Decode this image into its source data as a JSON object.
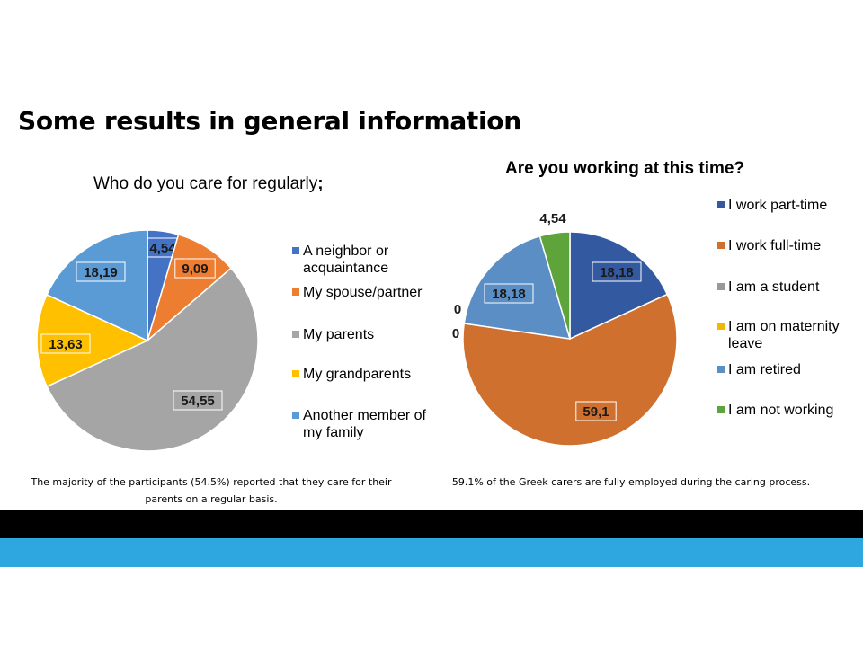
{
  "slide": {
    "title": "Some results in general information",
    "caption_left": "The majority of the participants (54.5%) reported that they care for their parents on a regular basis.",
    "caption_right": "59.1% of the Greek carers are fully employed during the caring process."
  },
  "chart_data": [
    {
      "type": "pie",
      "title_text": "Who do you care for regularly",
      "title_punct": ";",
      "legend_position": "right",
      "slices": [
        {
          "label": "A neighbor or acquaintance",
          "value": 4.54,
          "value_label": "4,54",
          "color": "#4472c4"
        },
        {
          "label": "My spouse/partner",
          "value": 9.09,
          "value_label": "9,09",
          "color": "#ed7d31"
        },
        {
          "label": "My parents",
          "value": 54.55,
          "value_label": "54,55",
          "color": "#a5a5a5"
        },
        {
          "label": "My grandparents",
          "value": 13.63,
          "value_label": "13,63",
          "color": "#ffc000"
        },
        {
          "label": "Another member of my family",
          "value": 18.19,
          "value_label": "18,19",
          "color": "#5b9bd5"
        }
      ]
    },
    {
      "type": "pie",
      "title": "Are you working at this time?",
      "legend_position": "right",
      "slices": [
        {
          "label": "I work part-time",
          "value": 18.18,
          "value_label": "18,18",
          "color": "#335aa0"
        },
        {
          "label": "I work full-time",
          "value": 59.1,
          "value_label": "59,1",
          "color": "#d0702e"
        },
        {
          "label": "I am a student",
          "value": 0,
          "value_label": "0",
          "color": "#999999"
        },
        {
          "label": "I am on maternity leave",
          "value": 0,
          "value_label": "0",
          "color": "#f2b800"
        },
        {
          "label": "I am retired",
          "value": 18.18,
          "value_label": "18,18",
          "color": "#5a8ec4"
        },
        {
          "label": "I am not working",
          "value": 4.54,
          "value_label": "4,54",
          "color": "#5ea43a"
        }
      ]
    }
  ]
}
